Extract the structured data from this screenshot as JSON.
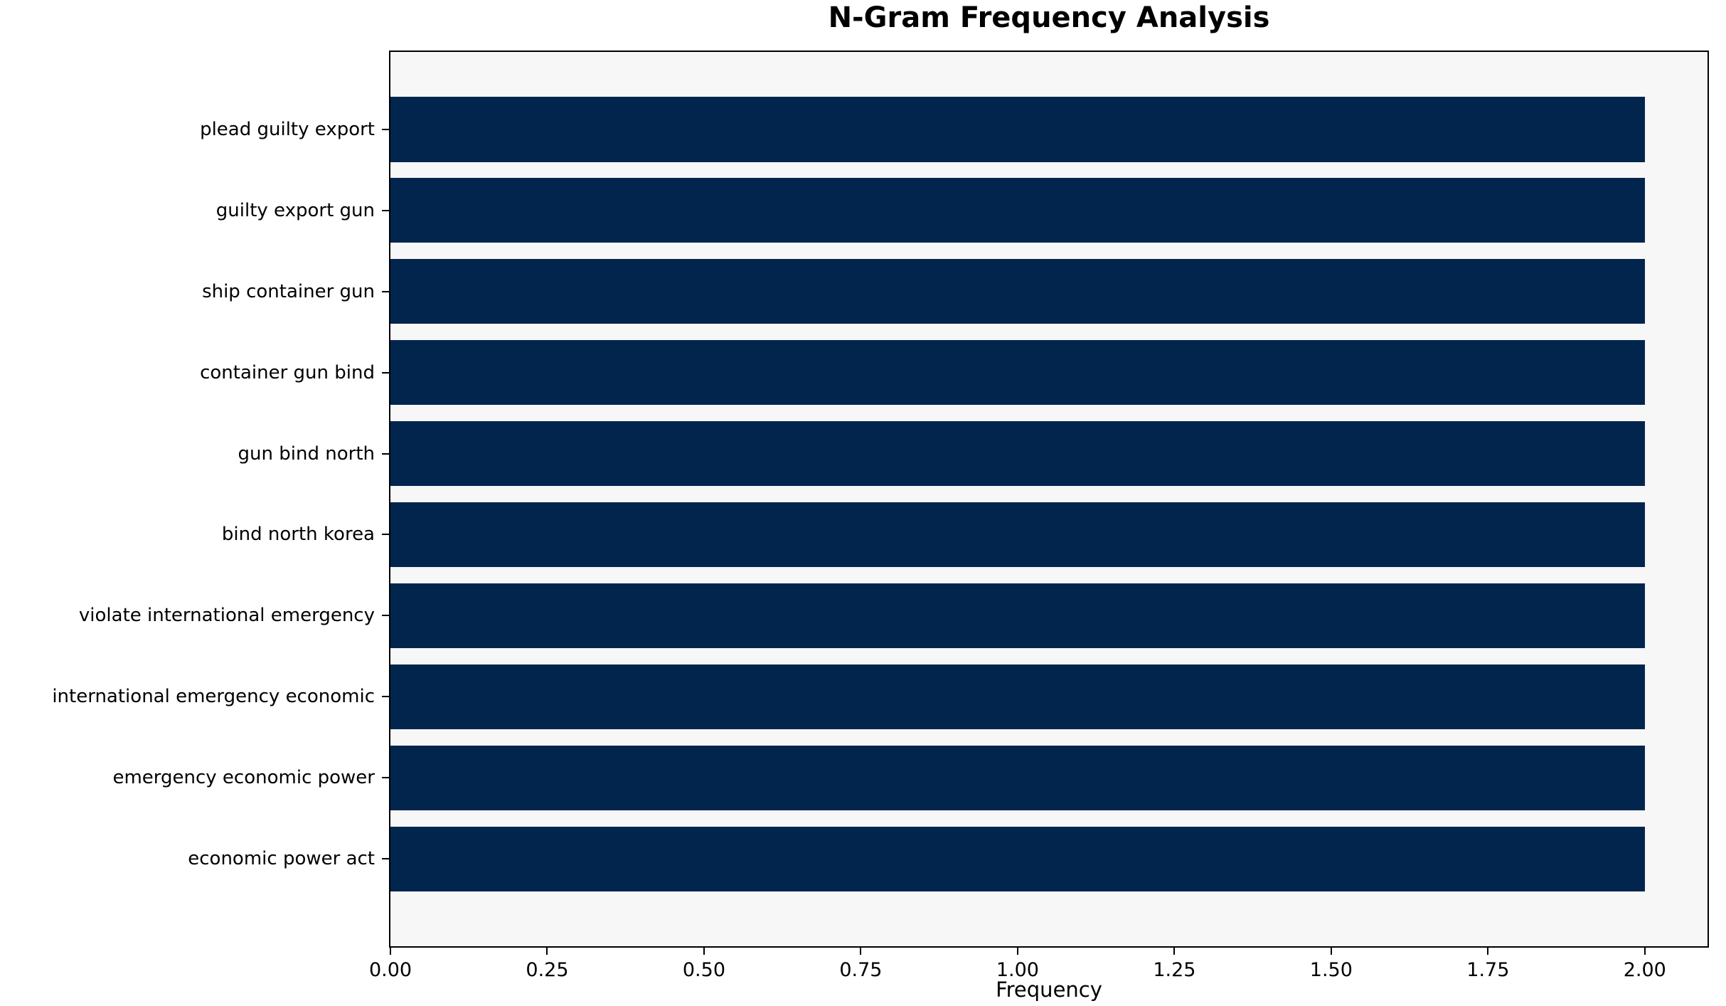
{
  "chart_data": {
    "type": "bar",
    "orientation": "horizontal",
    "title": "N-Gram Frequency Analysis",
    "xlabel": "Frequency",
    "ylabel": "",
    "categories": [
      "plead guilty export",
      "guilty export gun",
      "ship container gun",
      "container gun bind",
      "gun bind north",
      "bind north korea",
      "violate international emergency",
      "international emergency economic",
      "emergency economic power",
      "economic power act"
    ],
    "values": [
      2,
      2,
      2,
      2,
      2,
      2,
      2,
      2,
      2,
      2
    ],
    "xlim": [
      0,
      2.1
    ],
    "x_tick_values": [
      0,
      0.25,
      0.5,
      0.75,
      1.0,
      1.25,
      1.5,
      1.75,
      2.0
    ],
    "x_tick_labels": [
      "0.00",
      "0.25",
      "0.50",
      "0.75",
      "1.00",
      "1.25",
      "1.50",
      "1.75",
      "2.00"
    ],
    "grid": false,
    "legend": null,
    "colors": {
      "bar": "#02254e",
      "plot_background": "#f7f7f7",
      "figure_background": "#ffffff",
      "spine": "#000000",
      "text": "#000000"
    }
  }
}
